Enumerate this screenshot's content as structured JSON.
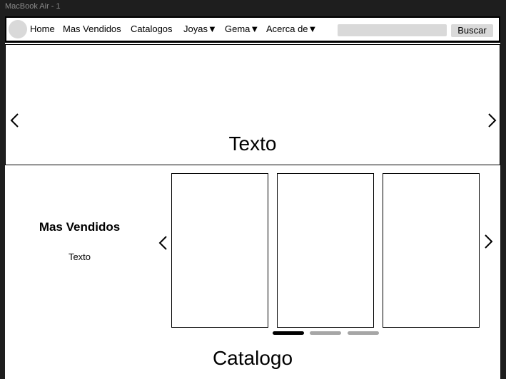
{
  "frame": {
    "label": "MacBook Air - 1"
  },
  "navbar": {
    "items": [
      "Home",
      "Mas Vendidos",
      "Catalogos",
      "Joyas▼",
      "Gema▼",
      "Acerca de▼"
    ],
    "search": {
      "value": "",
      "button_label": "Buscar"
    }
  },
  "hero": {
    "text": "Texto"
  },
  "best_sellers": {
    "title": "Mas Vendidos",
    "text": "Texto",
    "card_count": 3,
    "carousel_pages": 3,
    "active_page": 1
  },
  "catalog": {
    "title": "Catalogo"
  },
  "colors": {
    "canvas": "#1e1e1e",
    "page": "#ffffff",
    "placeholder": "#d9d9d9",
    "dot_active": "#000000",
    "dot_inactive": "#a6a6a6"
  }
}
